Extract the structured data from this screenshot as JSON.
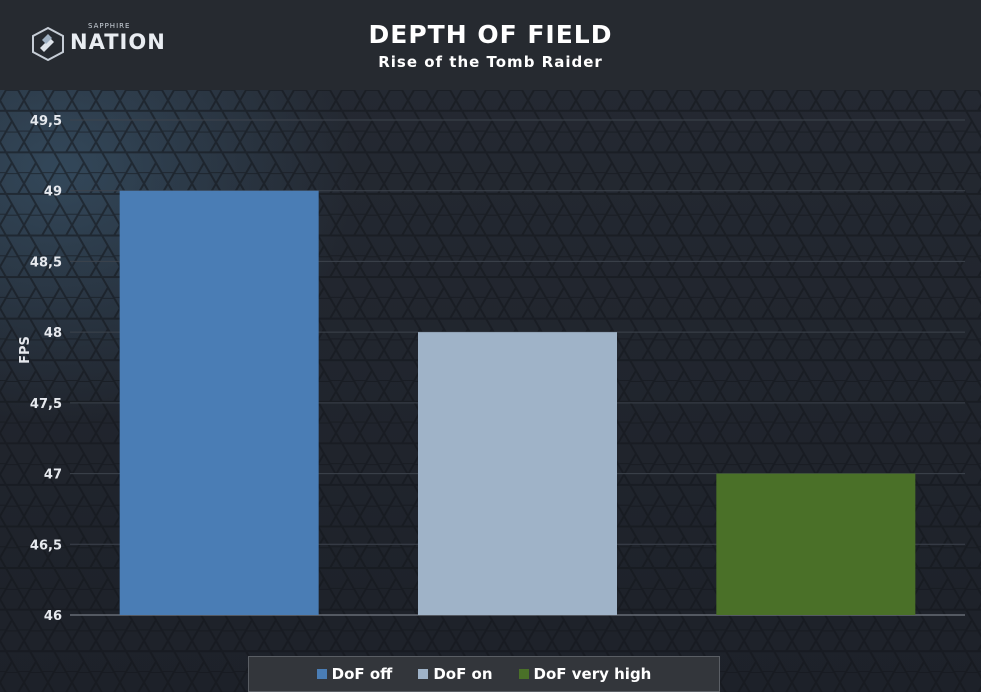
{
  "header": {
    "logo": {
      "small_text": "SAPPHIRE",
      "big_text": "NATION"
    },
    "title": "DEPTH OF FIELD",
    "subtitle": "Rise of the Tomb Raider"
  },
  "colors": {
    "header_bg": "#262a30",
    "bg": "#1f232a",
    "grid": "#3d434c"
  },
  "chart_data": {
    "type": "bar",
    "title": "DEPTH OF FIELD",
    "subtitle": "Rise of the Tomb Raider",
    "ylabel": "FPS",
    "xlabel": "",
    "ylim": [
      46,
      49.5
    ],
    "yticks": [
      "46",
      "46,5",
      "47",
      "47,5",
      "48",
      "48,5",
      "49",
      "49,5"
    ],
    "grid": true,
    "legend_position": "bottom",
    "series": [
      {
        "name": "DoF off",
        "value": 49,
        "color": "#4a7db5"
      },
      {
        "name": "DoF on",
        "value": 48,
        "color": "#9fb3c8"
      },
      {
        "name": "DoF very high",
        "value": 47,
        "color": "#4a7028"
      }
    ]
  }
}
